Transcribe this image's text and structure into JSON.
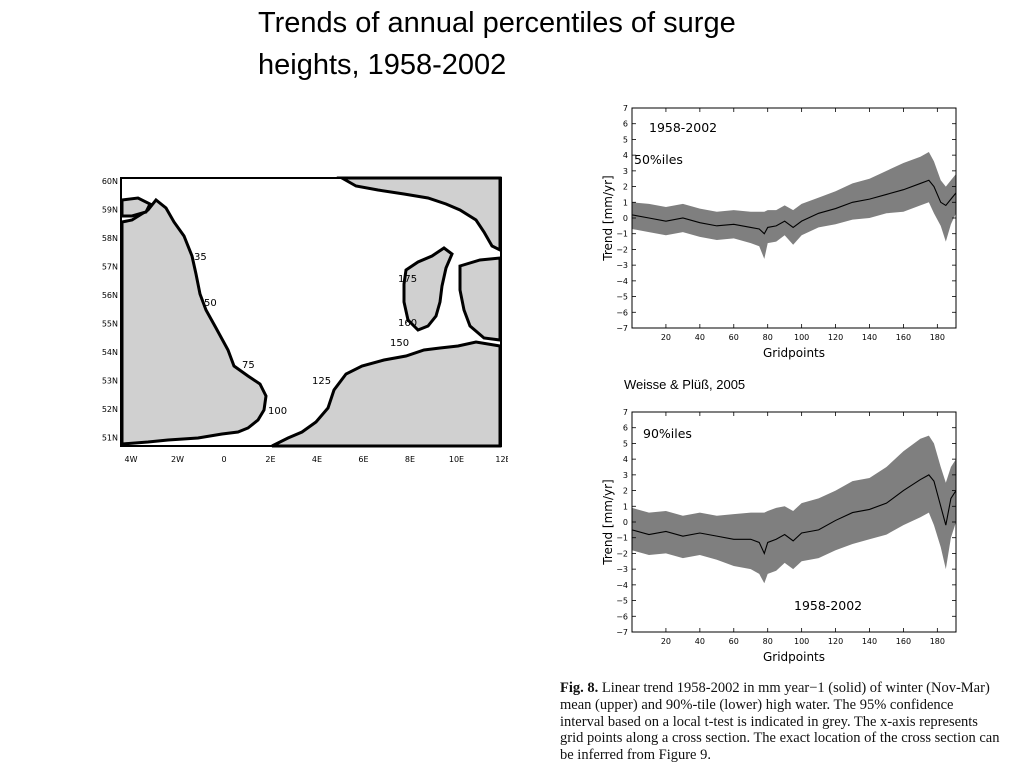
{
  "title": {
    "line1": "Trends of annual percentiles of surge",
    "line2": "heights, 1958-2002"
  },
  "map": {
    "lat_labels": [
      "60N",
      "59N",
      "58N",
      "57N",
      "56N",
      "55N",
      "54N",
      "53N",
      "52N",
      "51N"
    ],
    "lon_labels": [
      "4W",
      "2W",
      "0",
      "2E",
      "4E",
      "6E",
      "8E",
      "10E",
      "12E"
    ],
    "gridpoint_labels": [
      "35",
      "50",
      "75",
      "100",
      "125",
      "150",
      "160",
      "175"
    ]
  },
  "citation": "Weisse & Plüß, 2005",
  "colors": {
    "band": "#7f7f7f",
    "land": "#d0d0d0",
    "text": "#000000"
  },
  "chart_data": [
    {
      "type": "area",
      "annotation_period": "1958-2002",
      "annotation_label": "50%iles",
      "xlabel": "Gridpoints",
      "ylabel": "Trend [mm/yr]",
      "xlim": [
        0,
        191
      ],
      "ylim": [
        -7,
        7
      ],
      "xticks": [
        20,
        40,
        60,
        80,
        100,
        120,
        140,
        160,
        180
      ],
      "yticks": [
        -7,
        -6,
        -5,
        -4,
        -3,
        -2,
        -1,
        0,
        1,
        2,
        3,
        4,
        5,
        6,
        7
      ],
      "x": [
        0,
        10,
        20,
        30,
        40,
        50,
        60,
        70,
        75,
        78,
        80,
        85,
        90,
        95,
        100,
        110,
        120,
        130,
        140,
        150,
        160,
        170,
        175,
        178,
        182,
        185,
        188,
        191
      ],
      "trend": [
        0.2,
        0.0,
        -0.2,
        0.0,
        -0.3,
        -0.5,
        -0.4,
        -0.6,
        -0.7,
        -1.0,
        -0.6,
        -0.5,
        -0.2,
        -0.6,
        -0.2,
        0.3,
        0.6,
        1.0,
        1.2,
        1.5,
        1.8,
        2.2,
        2.4,
        2.0,
        1.0,
        0.8,
        1.2,
        1.6
      ],
      "lower": [
        -0.7,
        -0.9,
        -1.1,
        -0.9,
        -1.2,
        -1.4,
        -1.3,
        -1.6,
        -1.8,
        -2.6,
        -1.6,
        -1.5,
        -1.1,
        -1.7,
        -1.1,
        -0.6,
        -0.4,
        -0.1,
        0.0,
        0.3,
        0.4,
        0.8,
        1.0,
        0.3,
        -0.5,
        -1.5,
        -0.4,
        0.3
      ],
      "upper": [
        1.0,
        0.9,
        0.7,
        0.9,
        0.6,
        0.4,
        0.5,
        0.4,
        0.4,
        0.4,
        0.5,
        0.5,
        0.8,
        0.5,
        0.9,
        1.3,
        1.7,
        2.2,
        2.5,
        3.0,
        3.5,
        3.9,
        4.2,
        3.6,
        2.4,
        2.0,
        2.4,
        2.8
      ]
    },
    {
      "type": "area",
      "annotation_period": "1958-2002",
      "annotation_label": "90%iles",
      "xlabel": "Gridpoints",
      "ylabel": "Trend [mm/yr]",
      "xlim": [
        0,
        191
      ],
      "ylim": [
        -7,
        7
      ],
      "xticks": [
        20,
        40,
        60,
        80,
        100,
        120,
        140,
        160,
        180
      ],
      "yticks": [
        -7,
        -6,
        -5,
        -4,
        -3,
        -2,
        -1,
        0,
        1,
        2,
        3,
        4,
        5,
        6,
        7
      ],
      "x": [
        0,
        10,
        20,
        30,
        40,
        50,
        60,
        70,
        75,
        78,
        80,
        85,
        90,
        95,
        100,
        110,
        120,
        130,
        140,
        150,
        160,
        170,
        175,
        178,
        182,
        185,
        188,
        191
      ],
      "trend": [
        -0.5,
        -0.8,
        -0.6,
        -0.9,
        -0.7,
        -0.9,
        -1.1,
        -1.1,
        -1.3,
        -2.0,
        -1.3,
        -1.1,
        -0.8,
        -1.2,
        -0.7,
        -0.5,
        0.1,
        0.6,
        0.8,
        1.2,
        2.0,
        2.7,
        3.0,
        2.6,
        1.0,
        -0.2,
        1.5,
        2.0
      ],
      "lower": [
        -1.8,
        -2.1,
        -2.0,
        -2.3,
        -2.1,
        -2.4,
        -2.8,
        -3.0,
        -3.3,
        -3.9,
        -3.3,
        -3.1,
        -2.6,
        -3.0,
        -2.5,
        -2.3,
        -1.8,
        -1.4,
        -1.1,
        -0.8,
        -0.2,
        0.3,
        0.6,
        -0.2,
        -1.6,
        -3.0,
        -1.0,
        0.0
      ],
      "upper": [
        0.9,
        0.6,
        0.7,
        0.4,
        0.6,
        0.4,
        0.5,
        0.6,
        0.6,
        0.6,
        0.7,
        0.9,
        1.0,
        0.7,
        1.2,
        1.5,
        2.0,
        2.6,
        2.8,
        3.5,
        4.5,
        5.3,
        5.5,
        5.0,
        3.5,
        2.5,
        3.5,
        4.0
      ]
    }
  ],
  "figure_caption": {
    "label": "Fig. 8.",
    "text": "Linear trend 1958-2002 in mm year−1 (solid) of winter (Nov-Mar) mean (upper) and 90%-tile (lower) high water. The 95% confidence interval based on a local t-test is indicated in grey. The x-axis represents grid points along a cross section. The exact location of the cross section can be inferred from Figure 9."
  }
}
